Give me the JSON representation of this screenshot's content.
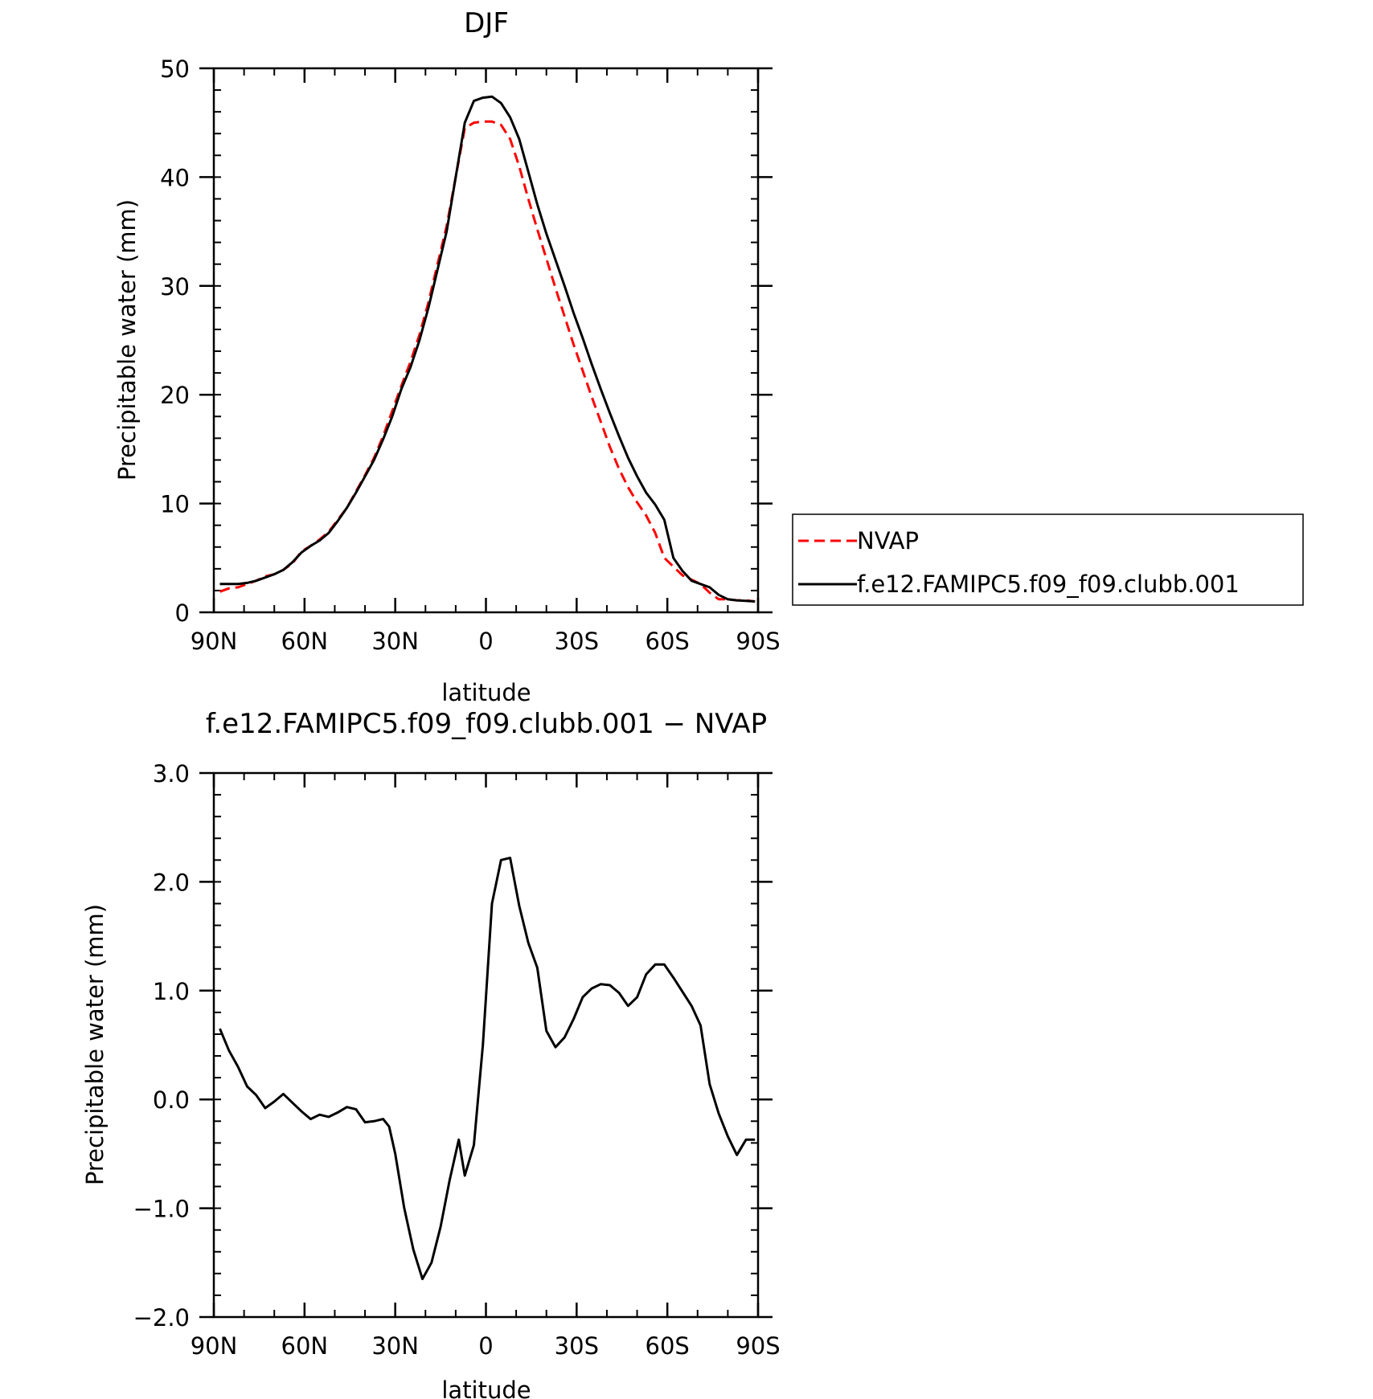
{
  "chart_data": [
    {
      "type": "line",
      "title": "DJF",
      "xlabel": "latitude",
      "ylabel": "Precipitable water (mm)",
      "xlim": [
        -90,
        90
      ],
      "ylim": [
        0,
        50
      ],
      "xtick_values": [
        -90,
        -60,
        -30,
        0,
        30,
        60,
        90
      ],
      "xtick_labels": [
        "90N",
        "60N",
        "30N",
        "0",
        "30S",
        "60S",
        "90S"
      ],
      "ytick_values": [
        0,
        10,
        20,
        30,
        40,
        50
      ],
      "ytick_labels": [
        "0",
        "10",
        "20",
        "30",
        "40",
        "50"
      ],
      "grid": false,
      "legend_position": "right",
      "series": [
        {
          "name": "NVAP",
          "color": "#ff0000",
          "style": "dashed",
          "x": [
            -88,
            -85,
            -82,
            -79,
            -76,
            -73,
            -70,
            -67,
            -64,
            -61,
            -58,
            -55,
            -52,
            -49,
            -46,
            -43,
            -40,
            -37,
            -34,
            -31,
            -28,
            -25,
            -22,
            -19,
            -16,
            -13,
            -10,
            -7,
            -4,
            -1,
            2,
            5,
            8,
            11,
            14,
            17,
            20,
            23,
            26,
            29,
            32,
            35,
            38,
            41,
            44,
            47,
            50,
            53,
            56,
            59,
            62,
            65,
            68,
            71,
            74,
            77,
            80,
            83,
            86,
            89
          ],
          "y": [
            1.9,
            2.2,
            2.3,
            2.6,
            2.9,
            3.3,
            3.5,
            3.9,
            4.5,
            5.6,
            6.1,
            6.7,
            7.4,
            8.5,
            9.6,
            11.1,
            12.6,
            14.2,
            16.2,
            18.5,
            20.8,
            23.0,
            25.5,
            28.5,
            32.0,
            35.5,
            40.0,
            44.5,
            45.0,
            45.1,
            45.1,
            44.8,
            43.5,
            41.0,
            38.0,
            35.2,
            32.5,
            29.8,
            27.2,
            24.6,
            22.2,
            19.8,
            17.5,
            15.2,
            13.2,
            11.5,
            10.1,
            8.9,
            7.3,
            5.0,
            4.2,
            3.4,
            3.0,
            2.6,
            1.8,
            1.2,
            1.2,
            1.1,
            1.1,
            1.0
          ]
        },
        {
          "name": "f.e12.FAMIPC5.f09_f09.clubb.001",
          "color": "#000000",
          "style": "solid",
          "x": [
            -88,
            -85,
            -82,
            -79,
            -76,
            -73,
            -70,
            -67,
            -64,
            -61,
            -58,
            -55,
            -52,
            -49,
            -46,
            -43,
            -40,
            -37,
            -34,
            -31,
            -28,
            -25,
            -22,
            -19,
            -16,
            -13,
            -10,
            -7,
            -4,
            -1,
            2,
            5,
            8,
            11,
            14,
            17,
            20,
            23,
            26,
            29,
            32,
            35,
            38,
            41,
            44,
            47,
            50,
            53,
            56,
            59,
            62,
            65,
            68,
            71,
            74,
            77,
            80,
            83,
            86,
            89
          ],
          "y": [
            2.6,
            2.6,
            2.6,
            2.7,
            2.9,
            3.2,
            3.5,
            3.9,
            4.6,
            5.5,
            6.1,
            6.6,
            7.3,
            8.4,
            9.6,
            11.0,
            12.5,
            14.0,
            15.9,
            18.0,
            20.5,
            22.5,
            25.0,
            28.0,
            31.5,
            35.0,
            40.0,
            45.0,
            47.0,
            47.3,
            47.4,
            46.8,
            45.5,
            43.5,
            40.5,
            37.5,
            34.8,
            32.4,
            30.0,
            27.5,
            25.2,
            22.8,
            20.5,
            18.3,
            16.2,
            14.2,
            12.5,
            11.0,
            9.9,
            8.5,
            5.0,
            3.8,
            2.9,
            2.6,
            2.3,
            1.6,
            1.2,
            1.1,
            1.05,
            1.0
          ]
        }
      ]
    },
    {
      "type": "line",
      "title": "f.e12.FAMIPC5.f09_f09.clubb.001 − NVAP",
      "xlabel": "latitude",
      "ylabel": "Precipitable water (mm)",
      "xlim": [
        -90,
        90
      ],
      "ylim": [
        -2.0,
        3.0
      ],
      "xtick_values": [
        -90,
        -60,
        -30,
        0,
        30,
        60,
        90
      ],
      "xtick_labels": [
        "90N",
        "60N",
        "30N",
        "0",
        "30S",
        "60S",
        "90S"
      ],
      "ytick_values": [
        -2.0,
        -1.0,
        0.0,
        1.0,
        2.0,
        3.0
      ],
      "ytick_labels": [
        "−2.0",
        "−1.0",
        "0.0",
        "1.0",
        "2.0",
        "3.0"
      ],
      "grid": false,
      "series": [
        {
          "color": "#000000",
          "style": "solid",
          "x": [
            -88,
            -85,
            -82,
            -79,
            -76,
            -73,
            -70,
            -67,
            -64,
            -61,
            -58,
            -55,
            -52,
            -49,
            -46,
            -43,
            -40,
            -37,
            -34,
            -32,
            -30,
            -27,
            -24,
            -21,
            -18,
            -15,
            -12,
            -9,
            -7,
            -4,
            -1,
            2,
            5,
            8,
            11,
            14,
            17,
            20,
            23,
            26,
            29,
            32,
            35,
            38,
            41,
            44,
            47,
            50,
            53,
            56,
            59,
            62,
            65,
            68,
            71,
            74,
            77,
            80,
            83,
            86,
            89
          ],
          "y": [
            0.65,
            0.45,
            0.3,
            0.12,
            0.04,
            -0.08,
            -0.02,
            0.05,
            -0.03,
            -0.11,
            -0.18,
            -0.14,
            -0.16,
            -0.12,
            -0.07,
            -0.09,
            -0.21,
            -0.2,
            -0.18,
            -0.25,
            -0.5,
            -1.0,
            -1.38,
            -1.65,
            -1.5,
            -1.17,
            -0.74,
            -0.37,
            -0.7,
            -0.42,
            0.5,
            1.8,
            2.2,
            2.22,
            1.78,
            1.44,
            1.21,
            0.63,
            0.48,
            0.57,
            0.74,
            0.94,
            1.02,
            1.06,
            1.05,
            0.98,
            0.86,
            0.94,
            1.15,
            1.24,
            1.24,
            1.12,
            0.99,
            0.86,
            0.68,
            0.14,
            -0.13,
            -0.34,
            -0.51,
            -0.37,
            -0.37
          ]
        }
      ]
    }
  ]
}
